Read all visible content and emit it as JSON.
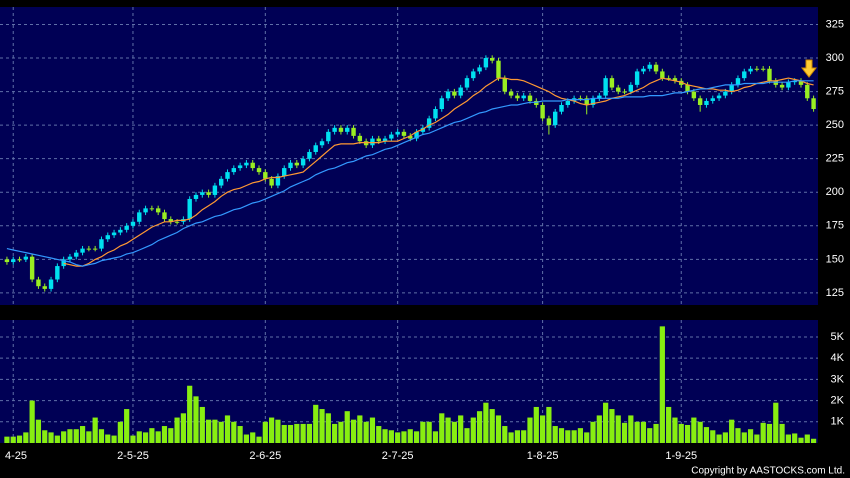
{
  "chart_data": [
    {
      "type": "candlestick",
      "up_color": "#00e0f0",
      "down_color": "#99ee22",
      "xlim": [
        -1.1,
        128.7
      ],
      "xticks": [
        {
          "value": 1,
          "label": "4-25"
        },
        {
          "value": 20,
          "label": "2-5-25"
        },
        {
          "value": 41,
          "label": "2-6-25"
        },
        {
          "value": 62,
          "label": "2-7-25"
        },
        {
          "value": 85,
          "label": "1-8-25"
        },
        {
          "value": 107,
          "label": "1-9-25"
        }
      ],
      "ylim": [
        116,
        338
      ],
      "yticks": [
        125,
        150,
        175,
        200,
        225,
        250,
        275,
        300,
        325
      ],
      "grid": true,
      "open": [
        150,
        148,
        150,
        150,
        152,
        135,
        130,
        128,
        135,
        145,
        150,
        152,
        155,
        158,
        158,
        158,
        165,
        168,
        170,
        172,
        175,
        178,
        185,
        188,
        188,
        185,
        180,
        178,
        178,
        180,
        195,
        198,
        200,
        198,
        205,
        210,
        215,
        218,
        220,
        222,
        218,
        215,
        210,
        205,
        212,
        218,
        222,
        220,
        225,
        230,
        235,
        238,
        245,
        248,
        245,
        248,
        242,
        238,
        235,
        240,
        238,
        240,
        243,
        245,
        242,
        240,
        245,
        248,
        255,
        262,
        270,
        275,
        272,
        278,
        285,
        290,
        293,
        300,
        298,
        285,
        275,
        272,
        270,
        272,
        268,
        265,
        255,
        250,
        260,
        265,
        268,
        270,
        270,
        265,
        270,
        272,
        285,
        278,
        275,
        275,
        280,
        290,
        292,
        295,
        290,
        285,
        285,
        283,
        280,
        275,
        270,
        265,
        268,
        270,
        272,
        275,
        280,
        285,
        290,
        292,
        292,
        292,
        283,
        280,
        278,
        282,
        283,
        280,
        270
      ],
      "high": [
        152,
        152,
        152,
        154,
        154,
        137,
        132,
        137,
        147,
        152,
        154,
        157,
        160,
        160,
        160,
        167,
        170,
        172,
        174,
        177,
        180,
        187,
        190,
        190,
        190,
        187,
        182,
        180,
        182,
        197,
        200,
        202,
        202,
        207,
        212,
        217,
        220,
        222,
        224,
        224,
        220,
        217,
        212,
        214,
        220,
        224,
        224,
        227,
        232,
        237,
        240,
        247,
        250,
        250,
        250,
        250,
        244,
        240,
        242,
        242,
        242,
        245,
        247,
        247,
        244,
        247,
        250,
        257,
        264,
        272,
        277,
        277,
        280,
        287,
        292,
        295,
        302,
        302,
        300,
        287,
        277,
        274,
        274,
        274,
        270,
        267,
        257,
        262,
        267,
        270,
        272,
        272,
        272,
        272,
        274,
        287,
        287,
        280,
        277,
        282,
        292,
        294,
        297,
        297,
        292,
        287,
        287,
        285,
        282,
        277,
        272,
        270,
        272,
        274,
        277,
        282,
        287,
        292,
        294,
        294,
        294,
        294,
        285,
        282,
        284,
        285,
        285,
        282,
        272
      ],
      "low": [
        146,
        146,
        148,
        148,
        133,
        128,
        126,
        126,
        133,
        143,
        148,
        150,
        153,
        156,
        156,
        156,
        163,
        166,
        168,
        170,
        173,
        176,
        183,
        186,
        183,
        178,
        176,
        176,
        176,
        178,
        193,
        196,
        196,
        196,
        203,
        208,
        213,
        216,
        218,
        216,
        213,
        208,
        203,
        203,
        210,
        216,
        218,
        218,
        223,
        228,
        233,
        236,
        243,
        243,
        243,
        240,
        236,
        233,
        233,
        236,
        236,
        238,
        241,
        240,
        238,
        238,
        243,
        246,
        253,
        260,
        268,
        270,
        270,
        276,
        283,
        288,
        291,
        296,
        283,
        273,
        270,
        268,
        268,
        266,
        263,
        253,
        243,
        248,
        258,
        263,
        266,
        268,
        258,
        263,
        268,
        270,
        276,
        273,
        273,
        273,
        278,
        288,
        290,
        288,
        283,
        283,
        281,
        278,
        273,
        268,
        260,
        263,
        266,
        268,
        270,
        273,
        278,
        283,
        288,
        290,
        290,
        281,
        278,
        276,
        276,
        280,
        278,
        268,
        260
      ],
      "close": [
        148,
        150,
        150,
        152,
        135,
        130,
        128,
        135,
        145,
        150,
        152,
        155,
        158,
        158,
        158,
        165,
        168,
        170,
        172,
        175,
        178,
        185,
        188,
        188,
        185,
        180,
        178,
        178,
        180,
        195,
        198,
        200,
        198,
        205,
        210,
        215,
        218,
        220,
        222,
        218,
        215,
        210,
        205,
        212,
        218,
        222,
        220,
        225,
        230,
        235,
        238,
        245,
        248,
        245,
        248,
        242,
        238,
        235,
        240,
        238,
        240,
        243,
        245,
        242,
        240,
        245,
        248,
        255,
        262,
        270,
        275,
        272,
        278,
        285,
        290,
        293,
        300,
        298,
        285,
        275,
        272,
        270,
        272,
        268,
        265,
        255,
        250,
        260,
        265,
        268,
        270,
        270,
        265,
        270,
        272,
        285,
        278,
        275,
        275,
        280,
        290,
        292,
        295,
        290,
        285,
        285,
        283,
        280,
        275,
        270,
        265,
        268,
        270,
        272,
        275,
        280,
        285,
        290,
        292,
        292,
        292,
        283,
        280,
        278,
        282,
        283,
        280,
        270,
        262
      ],
      "series": [
        {
          "color": "#ff9933",
          "values": [
            null,
            null,
            null,
            null,
            null,
            null,
            null,
            null,
            null,
            147,
            146,
            145,
            145,
            147,
            150,
            152,
            155,
            157,
            160,
            162,
            165,
            168,
            171,
            174,
            176,
            178,
            178,
            179,
            179,
            180,
            183,
            187,
            190,
            193,
            197,
            200,
            202,
            203,
            205,
            207,
            208,
            210,
            211,
            211,
            212,
            213,
            214,
            215,
            219,
            223,
            227,
            231,
            235,
            236,
            236,
            236,
            237,
            237,
            237,
            237,
            238,
            238,
            238,
            240,
            242,
            245,
            247,
            250,
            252,
            255,
            258,
            262,
            265,
            268,
            272,
            275,
            279,
            282,
            285,
            285,
            284,
            284,
            283,
            281,
            279,
            277,
            275,
            272,
            270,
            269,
            268,
            266,
            265,
            266,
            267,
            268,
            270,
            271,
            272,
            274,
            276,
            278,
            281,
            283,
            285,
            284,
            283,
            282,
            280,
            279,
            278,
            277,
            277,
            276,
            276,
            275,
            276,
            278,
            279,
            281,
            282,
            283,
            283,
            284,
            285,
            284,
            283,
            281,
            280
          ]
        },
        {
          "color": "#3399ff",
          "values": [
            158,
            157,
            156,
            155,
            154,
            153,
            152,
            151,
            150,
            149,
            148,
            146,
            145,
            146,
            147,
            149,
            150,
            151,
            152,
            154,
            155,
            157,
            159,
            161,
            164,
            166,
            168,
            170,
            173,
            175,
            177,
            178,
            180,
            182,
            183,
            185,
            187,
            188,
            190,
            192,
            193,
            195,
            197,
            199,
            201,
            204,
            206,
            208,
            210,
            213,
            215,
            217,
            218,
            220,
            222,
            223,
            225,
            227,
            228,
            230,
            232,
            233,
            235,
            237,
            239,
            241,
            243,
            244,
            246,
            248,
            250,
            252,
            253,
            255,
            257,
            259,
            260,
            262,
            263,
            264,
            265,
            265,
            266,
            267,
            267,
            268,
            268,
            268,
            268,
            269,
            269,
            269,
            269,
            270,
            270,
            270,
            270,
            270,
            271,
            271,
            271,
            271,
            272,
            272,
            272,
            273,
            274,
            274,
            275,
            276,
            277,
            277,
            278,
            279,
            280,
            280,
            280,
            281,
            281,
            281,
            281,
            282,
            282,
            282,
            282,
            283,
            283,
            283,
            283
          ]
        }
      ]
    },
    {
      "type": "bar",
      "color": "#88ee11",
      "ylim": [
        0,
        5800
      ],
      "yticks": [
        {
          "value": 1000,
          "label": "1K"
        },
        {
          "value": 2000,
          "label": "2K"
        },
        {
          "value": 3000,
          "label": "3K"
        },
        {
          "value": 4000,
          "label": "4K"
        },
        {
          "value": 5000,
          "label": "5K"
        }
      ],
      "grid": true,
      "values": [
        300,
        300,
        350,
        500,
        2000,
        1100,
        600,
        500,
        350,
        550,
        650,
        650,
        800,
        550,
        1200,
        650,
        400,
        350,
        1000,
        1600,
        350,
        550,
        500,
        700,
        550,
        800,
        700,
        1200,
        1400,
        2700,
        2200,
        1700,
        1100,
        1100,
        1000,
        1300,
        1000,
        800,
        400,
        500,
        300,
        1000,
        1200,
        1100,
        850,
        850,
        900,
        900,
        900,
        1800,
        1600,
        1400,
        900,
        1000,
        1500,
        1100,
        1300,
        1000,
        1200,
        800,
        650,
        600,
        500,
        550,
        650,
        550,
        1000,
        1000,
        550,
        1400,
        1200,
        1000,
        1300,
        700,
        1200,
        1500,
        1900,
        1600,
        1300,
        800,
        500,
        600,
        600,
        1200,
        1700,
        1300,
        1700,
        800,
        700,
        600,
        600,
        700,
        500,
        1000,
        1300,
        1900,
        1600,
        1300,
        950,
        1300,
        1000,
        1000,
        700,
        900,
        5500,
        1700,
        1200,
        900,
        850,
        1200,
        1000,
        750,
        600,
        400,
        500,
        1100,
        700,
        500,
        650,
        400,
        950,
        900,
        1900,
        900,
        400,
        450,
        250,
        400,
        200
      ]
    }
  ],
  "copyright": "Copyright by AASTOCKS.com Ltd."
}
